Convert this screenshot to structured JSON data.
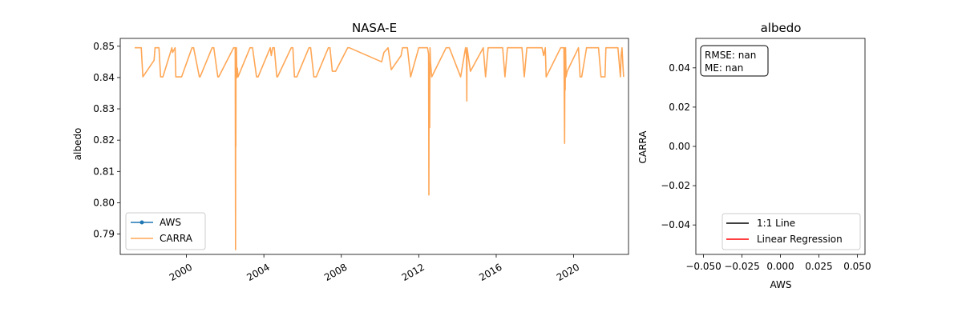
{
  "chart_data": [
    {
      "type": "line",
      "title": "NASA-E",
      "xlabel": "",
      "ylabel": "albedo",
      "x_ticks": [
        "2000",
        "2004",
        "2008",
        "2012",
        "2016",
        "2020"
      ],
      "y_ticks": [
        "0.79",
        "0.80",
        "0.81",
        "0.82",
        "0.83",
        "0.84",
        "0.85"
      ],
      "xlim": [
        "1996-08-01",
        "2022-11-01"
      ],
      "ylim": [
        0.7835,
        0.8525
      ],
      "legend": {
        "placement": "lower left",
        "entries": [
          "AWS",
          "CARRA"
        ]
      },
      "colors": {
        "AWS": "#1f77b4",
        "CARRA": "#ffa756"
      },
      "series": [
        {
          "name": "AWS",
          "x": [],
          "y": []
        },
        {
          "name": "CARRA",
          "x": [
            "1997-05-01",
            "1997-09-01",
            "1997-10-01",
            "1998-05-01",
            "1998-05-20",
            "1998-08-01",
            "1998-09-01",
            "1998-10-15",
            "1999-04-01",
            "1999-04-15",
            "1999-06-01",
            "1999-06-15",
            "1999-09-01",
            "1999-10-01",
            "2000-04-15",
            "2000-05-15",
            "2000-09-01",
            "2000-09-15",
            "2001-05-01",
            "2001-06-01",
            "2001-08-15",
            "2001-09-01",
            "2002-06-10",
            "2002-07-10",
            "2002-07-15",
            "2002-07-20",
            "2002-07-22",
            "2002-07-25",
            "2002-08-01",
            "2002-08-10",
            "2002-08-20",
            "2002-09-01",
            "2003-04-15",
            "2003-06-01",
            "2003-08-15",
            "2003-09-15",
            "2004-05-01",
            "2004-05-20",
            "2004-06-15",
            "2004-07-15",
            "2004-09-01",
            "2004-09-15",
            "2005-06-01",
            "2005-07-01",
            "2005-08-01",
            "2005-09-15",
            "2006-05-01",
            "2006-06-01",
            "2006-08-01",
            "2006-09-15",
            "2007-05-01",
            "2007-06-01",
            "2007-07-15",
            "2007-09-15",
            "2008-05-01",
            "2008-06-01",
            "2010-02-01",
            "2010-03-15",
            "2010-06-01",
            "2010-08-01",
            "2011-02-01",
            "2011-03-01",
            "2011-06-01",
            "2011-08-01",
            "2012-01-01",
            "2012-03-15",
            "2012-06-15",
            "2012-07-05",
            "2012-07-10",
            "2012-07-15",
            "2012-07-20",
            "2012-07-25",
            "2012-08-01",
            "2012-08-10",
            "2012-09-01",
            "2013-06-01",
            "2013-08-01",
            "2014-03-01",
            "2014-06-01",
            "2014-06-20",
            "2014-06-25",
            "2014-07-01",
            "2014-09-01",
            "2015-05-01",
            "2015-06-15",
            "2015-08-01",
            "2016-05-01",
            "2016-06-15",
            "2016-08-01",
            "2017-05-01",
            "2017-06-15",
            "2017-08-01",
            "2018-04-15",
            "2018-05-15",
            "2018-06-15",
            "2018-07-15",
            "2018-08-01",
            "2019-05-01",
            "2019-06-15",
            "2019-07-01",
            "2019-07-15",
            "2019-07-20",
            "2019-07-25",
            "2019-08-01",
            "2019-08-10",
            "2019-09-01",
            "2020-04-01",
            "2020-05-01",
            "2020-06-01",
            "2020-09-01",
            "2021-04-15",
            "2021-06-01",
            "2021-08-15",
            "2021-09-01",
            "2022-04-15",
            "2022-06-01",
            "2022-06-15",
            "2022-07-01",
            "2022-07-15",
            "2022-08-01"
          ],
          "y": [
            0.8495,
            0.8495,
            0.8402,
            0.8455,
            0.8495,
            0.8495,
            0.8402,
            0.8402,
            0.8495,
            0.848,
            0.8495,
            0.8402,
            0.8402,
            0.8402,
            0.8495,
            0.8495,
            0.8402,
            0.8402,
            0.8495,
            0.8495,
            0.8402,
            0.8402,
            0.8495,
            0.8495,
            0.785,
            0.8495,
            0.818,
            0.847,
            0.8495,
            0.84,
            0.843,
            0.8402,
            0.8495,
            0.8495,
            0.8402,
            0.8402,
            0.8495,
            0.847,
            0.8495,
            0.8495,
            0.8402,
            0.8402,
            0.8495,
            0.8495,
            0.8402,
            0.8402,
            0.8495,
            0.8495,
            0.8402,
            0.8402,
            0.8495,
            0.8495,
            0.842,
            0.842,
            0.8495,
            0.8495,
            0.845,
            0.848,
            0.8495,
            0.8425,
            0.847,
            0.8495,
            0.8495,
            0.8402,
            0.8495,
            0.8495,
            0.8495,
            0.8475,
            0.8025,
            0.845,
            0.842,
            0.824,
            0.8495,
            0.845,
            0.8402,
            0.8495,
            0.8495,
            0.8402,
            0.8495,
            0.847,
            0.8325,
            0.8495,
            0.842,
            0.8495,
            0.8402,
            0.8495,
            0.8495,
            0.8402,
            0.8495,
            0.8495,
            0.8402,
            0.8495,
            0.8495,
            0.8495,
            0.847,
            0.8495,
            0.8402,
            0.8495,
            0.8495,
            0.8495,
            0.819,
            0.8495,
            0.836,
            0.8495,
            0.8402,
            0.842,
            0.8495,
            0.8402,
            0.8402,
            0.8495,
            0.8495,
            0.8402,
            0.8402,
            0.8495,
            0.8495,
            0.8402,
            0.847,
            0.8495,
            0.845,
            0.8402
          ]
        }
      ]
    },
    {
      "type": "scatter",
      "title": "albedo",
      "xlabel": "AWS",
      "ylabel": "CARRA",
      "x_ticks": [
        "−0.050",
        "−0.025",
        "0.000",
        "0.025",
        "0.050"
      ],
      "y_ticks": [
        "−0.04",
        "−0.02",
        "0.00",
        "0.02",
        "0.04"
      ],
      "xlim": [
        -0.055,
        0.055
      ],
      "ylim": [
        -0.055,
        0.055
      ],
      "stats_box": [
        "RMSE: nan",
        "ME: nan"
      ],
      "legend": {
        "placement": "lower right",
        "entries": [
          "1:1 Line",
          "Linear Regression"
        ]
      },
      "colors": {
        "1:1 Line": "#000000",
        "Linear Regression": "#ff0000"
      },
      "series": []
    }
  ]
}
